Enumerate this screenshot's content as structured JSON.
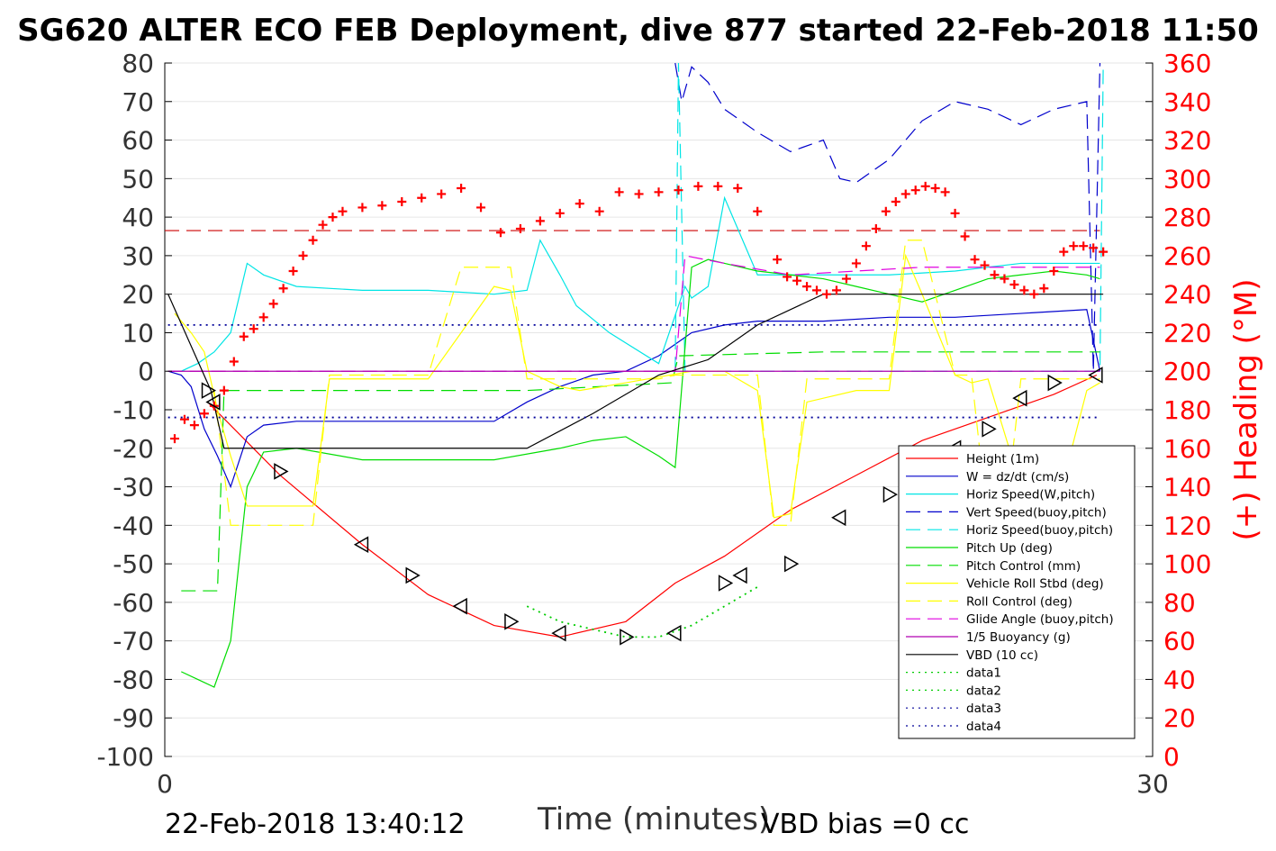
{
  "chart_data": {
    "type": "line",
    "title": "SG620 ALTER ECO FEB Deployment, dive 877 started 22-Feb-2018 11:50",
    "xlabel": "Time (minutes)",
    "ylabel_right": "(+) Heading (°M)",
    "xlim": [
      0,
      30
    ],
    "ylim_left": [
      -100,
      80
    ],
    "ylim_right": [
      0,
      360
    ],
    "x_ticks": [
      "0",
      "30"
    ],
    "y_ticks_left": [
      "80",
      "70",
      "60",
      "50",
      "40",
      "30",
      "20",
      "10",
      "0",
      "-10",
      "-20",
      "-30",
      "-40",
      "-50",
      "-60",
      "-70",
      "-80",
      "-90",
      "-100"
    ],
    "y_ticks_right": [
      "360",
      "340",
      "320",
      "300",
      "280",
      "260",
      "240",
      "220",
      "200",
      "180",
      "160",
      "140",
      "120",
      "100",
      "80",
      "60",
      "40",
      "20",
      "0"
    ],
    "grid": "horizontal",
    "legend_position": "bottom-right",
    "colors": {
      "height": "#ff0000",
      "w": "#0000cc",
      "horiz_speed": "#00e5e5",
      "vert_speed": "#0000cc",
      "pitch_up": "#00dd00",
      "pitch_control": "#00dd00",
      "roll": "#ffff00",
      "glide": "#e000e0",
      "buoyancy": "#b000b0",
      "vbd": "#000000",
      "heading": "#ff0000"
    },
    "series": [
      {
        "name": "Height (1m)",
        "style": "solid",
        "color": "#ff0000",
        "x": [
          1.3,
          3.5,
          6,
          8,
          10,
          12,
          14,
          15.5,
          17,
          19,
          21,
          23,
          25,
          27,
          28.3
        ],
        "y": [
          -8,
          -27,
          -45,
          -58,
          -66,
          -69,
          -65,
          -55,
          -48,
          -36,
          -27,
          -18,
          -12,
          -6,
          -1
        ]
      },
      {
        "name": "W = dz/dt (cm/s)",
        "style": "solid",
        "color": "#0000cc",
        "x": [
          0.1,
          0.5,
          0.8,
          1.2,
          1.6,
          2,
          2.5,
          3,
          4,
          6,
          8,
          10,
          11,
          12,
          13,
          14,
          15,
          16,
          17,
          18,
          20,
          22,
          24,
          26,
          28,
          28.4
        ],
        "y": [
          0,
          -1,
          -4,
          -15,
          -22,
          -30,
          -17,
          -14,
          -13,
          -13,
          -13,
          -13,
          -8,
          -4,
          -1,
          0,
          4,
          10,
          12,
          13,
          13,
          14,
          14,
          15,
          16,
          0
        ]
      },
      {
        "name": "Horiz Speed(W,pitch)",
        "style": "solid",
        "color": "#00e5e5",
        "x": [
          0.1,
          0.5,
          1,
          1.5,
          2,
          2.5,
          3,
          4,
          6,
          8,
          10,
          11,
          11.4,
          12,
          12.5,
          13.5,
          15,
          15.8,
          16,
          16.5,
          17,
          18,
          20,
          22,
          24,
          26,
          28,
          28.4
        ],
        "y": [
          0,
          0,
          2,
          5,
          10,
          28,
          25,
          22,
          21,
          21,
          20,
          21,
          34,
          25,
          17,
          10,
          2,
          22,
          19,
          22,
          45,
          25,
          25,
          25,
          26,
          28,
          28,
          28
        ]
      },
      {
        "name": "Vert Speed(buoy,pitch)",
        "style": "dash",
        "color": "#0000cc",
        "x": [
          15.5,
          15.7,
          16,
          16.5,
          17,
          18,
          19,
          20,
          20.5,
          21,
          22,
          23,
          24,
          25,
          26,
          27,
          28,
          28.2,
          28.4
        ],
        "y": [
          80,
          70,
          79,
          75,
          68,
          62,
          57,
          60,
          50,
          49,
          55,
          65,
          70,
          68,
          64,
          68,
          70,
          0,
          80
        ]
      },
      {
        "name": "Horiz Speed(buoy,pitch)",
        "style": "dash",
        "color": "#00e5e5",
        "x": [
          15.5,
          15.6,
          15.8,
          28.4,
          28.5
        ],
        "y": [
          0,
          80,
          0,
          0,
          80
        ]
      },
      {
        "name": "Pitch Up (deg)",
        "style": "solid",
        "color": "#00dd00",
        "x": [
          0.5,
          1,
          1.5,
          2,
          2.5,
          3,
          4,
          6,
          8,
          10,
          12,
          13,
          14,
          15,
          15.5,
          16,
          16.5,
          17,
          18,
          19,
          20,
          21,
          22,
          23,
          24,
          25,
          26,
          27,
          28,
          28.4
        ],
        "y": [
          -78,
          -80,
          -82,
          -70,
          -30,
          -21,
          -20,
          -23,
          -23,
          -23,
          -20,
          -18,
          -17,
          -22,
          -25,
          27,
          29,
          28,
          26,
          25,
          24,
          22,
          20,
          18,
          21,
          24,
          25,
          26,
          25,
          24
        ]
      },
      {
        "name": "Pitch Control (mm)",
        "style": "dash",
        "color": "#00dd00",
        "x": [
          0.5,
          1.6,
          1.8,
          2.5,
          11,
          15.4,
          15.6,
          20,
          28.4
        ],
        "y": [
          -57,
          -57,
          -5,
          -5,
          -5,
          -3,
          4,
          5,
          5
        ]
      },
      {
        "name": "Vehicle Roll Stbd (deg)",
        "style": "solid",
        "color": "#ffff00",
        "x": [
          0.3,
          0.8,
          1.2,
          1.6,
          2,
          2.5,
          3.5,
          4.5,
          5,
          8,
          10,
          10.5,
          11,
          12,
          12.6,
          14,
          16,
          17,
          18,
          18.5,
          19,
          19.5,
          20,
          21,
          22,
          22.5,
          23,
          24,
          24.5,
          25,
          26,
          27,
          28,
          28.4
        ],
        "y": [
          15,
          10,
          5,
          -10,
          -22,
          -35,
          -35,
          -35,
          -2,
          -2,
          22,
          21,
          0,
          -4,
          -5,
          -3,
          0,
          0,
          -5,
          -38,
          -37,
          -8,
          -7,
          -5,
          -5,
          30,
          20,
          -1,
          -3,
          -2,
          -30,
          -38,
          -5,
          -3
        ]
      },
      {
        "name": "Roll Control (deg)",
        "style": "dash",
        "color": "#ffff00",
        "x": [
          1.5,
          2,
          4.5,
          5,
          8,
          9,
          10.5,
          11,
          15,
          15.5,
          18,
          18.5,
          19,
          19.5,
          21,
          22,
          22.5,
          23,
          24,
          24.5,
          25,
          25.5,
          26,
          27,
          28.4
        ],
        "y": [
          -5,
          -40,
          -40,
          -1,
          -1,
          27,
          27,
          -2,
          -2,
          -1,
          -1,
          -40,
          -40,
          -2,
          -2,
          -2,
          34,
          34,
          -1,
          -1,
          -40,
          -40,
          -2,
          -2,
          -2
        ]
      },
      {
        "name": "Glide Angle (buoy,pitch)",
        "style": "dash",
        "color": "#e000e0",
        "x": [
          0.1,
          15.5,
          15.8,
          17,
          19,
          21,
          23,
          25,
          27,
          28.4
        ],
        "y": [
          0,
          0,
          30,
          28,
          25,
          26,
          27,
          27,
          27,
          27
        ]
      },
      {
        "name": "1/5 Buoyancy (g)",
        "style": "solid",
        "color": "#b000b0",
        "x": [
          0.1,
          15.5,
          28.4
        ],
        "y": [
          0,
          0,
          0
        ]
      },
      {
        "name": "VBD (10 cc)",
        "style": "solid",
        "color": "#000000",
        "x": [
          0.1,
          1.4,
          1.8,
          11,
          13,
          15,
          16.5,
          18,
          20,
          22,
          24,
          26,
          28,
          28.5
        ],
        "y": [
          20,
          -5,
          -20,
          -20,
          -11,
          -1,
          3,
          12,
          20,
          20,
          20,
          20,
          20,
          20
        ]
      },
      {
        "name": "data1",
        "style": "dot",
        "color": "#00cc00",
        "x": [
          11,
          12,
          13,
          14,
          15,
          16,
          17,
          18
        ],
        "y": [
          -61,
          -65,
          -67,
          -69,
          -69,
          -66,
          -61,
          -56
        ]
      },
      {
        "name": "data2",
        "style": "dot",
        "color": "#00cc00",
        "x": [],
        "y": []
      },
      {
        "name": "data3",
        "style": "dot",
        "color": "#000099",
        "x": [
          0.1,
          28.4
        ],
        "y": [
          12,
          12
        ]
      },
      {
        "name": "data4",
        "style": "dot",
        "color": "#000099",
        "x": [
          0.1,
          28.4
        ],
        "y": [
          -12,
          -12
        ]
      }
    ],
    "reference_lines": [
      {
        "axis": "right",
        "value": 273,
        "style": "dash",
        "color": "#cc0000"
      }
    ],
    "heading": {
      "axis": "right",
      "marker": "+",
      "color": "#ff0000",
      "x": [
        0.3,
        0.6,
        0.9,
        1.2,
        1.5,
        1.8,
        2.1,
        2.4,
        2.7,
        3,
        3.3,
        3.6,
        3.9,
        4.2,
        4.5,
        4.8,
        5.1,
        5.4,
        6,
        6.6,
        7.2,
        7.8,
        8.4,
        9,
        9.6,
        10.2,
        10.8,
        11.4,
        12,
        12.6,
        13.2,
        13.8,
        14.4,
        15,
        15.6,
        16.2,
        16.8,
        17.4,
        18,
        18.6,
        18.9,
        19.2,
        19.5,
        19.8,
        20.1,
        20.4,
        20.7,
        21,
        21.3,
        21.6,
        21.9,
        22.2,
        22.5,
        22.8,
        23.1,
        23.4,
        23.7,
        24,
        24.3,
        24.6,
        24.9,
        25.2,
        25.5,
        25.8,
        26.1,
        26.4,
        26.7,
        27,
        27.3,
        27.6,
        27.9,
        28.2,
        28.5
      ],
      "y": [
        165,
        175,
        172,
        178,
        182,
        190,
        205,
        218,
        222,
        228,
        235,
        243,
        252,
        260,
        268,
        276,
        280,
        283,
        285,
        286,
        288,
        290,
        292,
        295,
        285,
        272,
        274,
        278,
        282,
        287,
        283,
        293,
        292,
        293,
        294,
        296,
        296,
        295,
        283,
        258,
        249,
        247,
        244,
        242,
        240,
        242,
        248,
        256,
        265,
        274,
        283,
        288,
        292,
        294,
        296,
        295,
        293,
        282,
        270,
        258,
        255,
        250,
        248,
        245,
        242,
        240,
        243,
        252,
        262,
        265,
        265,
        264,
        262
      ]
    },
    "triangles": {
      "x": [
        1.3,
        1.5,
        3.5,
        6,
        7.5,
        9,
        10.5,
        12,
        14,
        15.5,
        17,
        17.5,
        19,
        20.5,
        22,
        24,
        25,
        26,
        27,
        28.3
      ],
      "y": [
        -5,
        -8,
        -26,
        -45,
        -53,
        -61,
        -65,
        -68,
        -69,
        -68,
        -55,
        -53,
        -50,
        -38,
        -32,
        -20,
        -15,
        -7,
        -3,
        -1
      ]
    }
  },
  "footer": {
    "timestamp": "22-Feb-2018 13:40:12",
    "vbd_bias": "VBD bias =0 cc"
  }
}
